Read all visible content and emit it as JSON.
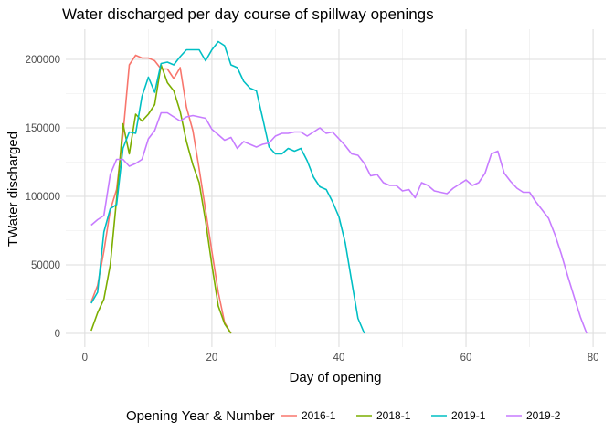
{
  "chart_data": {
    "type": "line",
    "title": "Water discharged per day course of spillway openings",
    "xlabel": "Day of opening",
    "ylabel": "TWater discharged",
    "xlim": [
      -3,
      82
    ],
    "ylim": [
      -10000,
      222000
    ],
    "x_ticks": [
      0,
      20,
      40,
      60,
      80
    ],
    "y_ticks": [
      0,
      50000,
      100000,
      150000,
      200000
    ],
    "y_tick_labels": [
      "0",
      "50000",
      "100000",
      "150000",
      "200000"
    ],
    "grid": true,
    "legend": {
      "title": "Opening Year & Number",
      "position": "bottom"
    },
    "series": [
      {
        "name": "2016-1",
        "color": "#F8766D",
        "x": [
          1,
          2,
          3,
          4,
          5,
          6,
          7,
          8,
          9,
          10,
          11,
          12,
          13,
          14,
          15,
          16,
          17,
          18,
          19,
          20,
          21,
          22,
          23
        ],
        "y": [
          23000,
          35000,
          60000,
          90000,
          105000,
          145000,
          196000,
          203000,
          201000,
          201000,
          199000,
          193000,
          193000,
          186000,
          194000,
          165000,
          148000,
          120000,
          90000,
          60000,
          30000,
          8000,
          0
        ]
      },
      {
        "name": "2018-1",
        "color": "#7CAE00",
        "x": [
          1,
          2,
          3,
          4,
          5,
          6,
          7,
          8,
          9,
          10,
          11,
          12,
          13,
          14,
          15,
          16,
          17,
          18,
          19,
          20,
          21,
          22,
          23
        ],
        "y": [
          2000,
          15000,
          25000,
          50000,
          98000,
          153000,
          131000,
          160000,
          155000,
          160000,
          167000,
          196000,
          183000,
          177000,
          162000,
          140000,
          123000,
          110000,
          82000,
          50000,
          20000,
          7000,
          0
        ]
      },
      {
        "name": "2019-1",
        "color": "#00BFC4",
        "x": [
          1,
          2,
          3,
          4,
          5,
          6,
          7,
          8,
          9,
          10,
          11,
          12,
          13,
          14,
          15,
          16,
          17,
          18,
          19,
          20,
          21,
          22,
          23,
          24,
          25,
          26,
          27,
          28,
          29,
          30,
          31,
          32,
          33,
          34,
          35,
          36,
          37,
          38,
          39,
          40,
          41,
          42,
          43,
          44
        ],
        "y": [
          22000,
          30000,
          74000,
          91000,
          94000,
          135000,
          147000,
          146000,
          173000,
          187000,
          176000,
          197000,
          198000,
          196000,
          202000,
          207000,
          207000,
          207000,
          199000,
          207000,
          213000,
          210000,
          196000,
          194000,
          184000,
          179000,
          177000,
          157000,
          136000,
          131000,
          131000,
          135000,
          133000,
          135000,
          126000,
          114000,
          107000,
          105000,
          96000,
          85000,
          66000,
          38000,
          11000,
          0
        ]
      },
      {
        "name": "2019-2",
        "color": "#C77CFF",
        "x": [
          1,
          2,
          3,
          4,
          5,
          6,
          7,
          8,
          9,
          10,
          11,
          12,
          13,
          14,
          15,
          16,
          17,
          18,
          19,
          20,
          21,
          22,
          23,
          24,
          25,
          26,
          27,
          28,
          29,
          30,
          31,
          32,
          33,
          34,
          35,
          36,
          37,
          38,
          39,
          40,
          41,
          42,
          43,
          44,
          45,
          46,
          47,
          48,
          49,
          50,
          51,
          52,
          53,
          54,
          55,
          56,
          57,
          58,
          59,
          60,
          61,
          62,
          63,
          64,
          65,
          66,
          67,
          68,
          69,
          70,
          71,
          72,
          73,
          74,
          75,
          76,
          77,
          78,
          79
        ],
        "y": [
          79000,
          83000,
          86000,
          116000,
          127000,
          127000,
          122000,
          124000,
          127000,
          142000,
          148000,
          161000,
          161000,
          158000,
          155000,
          158000,
          159000,
          158000,
          157000,
          149000,
          145000,
          141000,
          143000,
          135000,
          140000,
          138000,
          136000,
          138000,
          139000,
          144000,
          146000,
          146000,
          147000,
          147000,
          144000,
          147000,
          150000,
          146000,
          147000,
          142000,
          137000,
          131000,
          130000,
          124000,
          115000,
          116000,
          110000,
          108000,
          108000,
          104000,
          105000,
          99000,
          110000,
          108000,
          104000,
          103000,
          102000,
          106000,
          109000,
          112000,
          108000,
          110000,
          117000,
          131000,
          133000,
          117000,
          111000,
          106000,
          103000,
          103000,
          96000,
          90000,
          84000,
          72000,
          58000,
          42000,
          27000,
          12000,
          0
        ]
      }
    ]
  }
}
